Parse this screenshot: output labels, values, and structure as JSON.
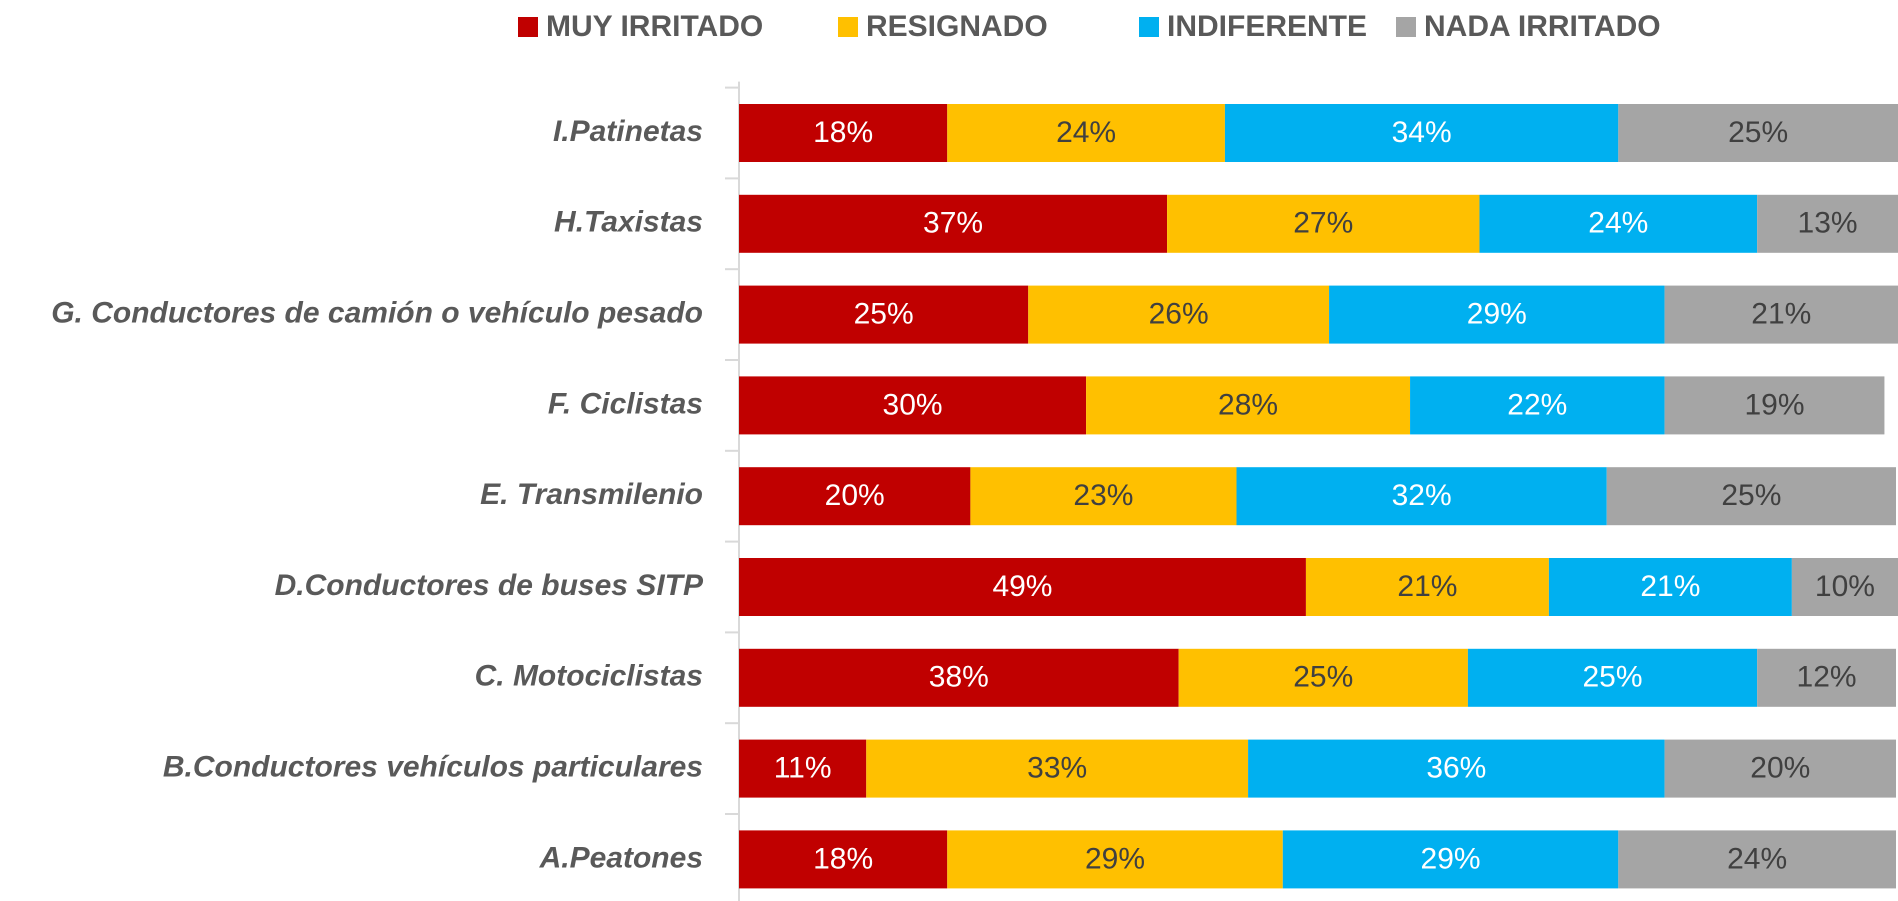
{
  "chart_data": {
    "type": "stacked-barh",
    "categories": [
      "I.Patinetas",
      "H.Taxistas",
      "G. Conductores de camión o vehículo pesado",
      "F. Ciclistas",
      "E. Transmilenio",
      "D.Conductores de buses SITP",
      "C. Motociclistas",
      "B.Conductores vehículos particulares",
      "A.Peatones"
    ],
    "series": [
      {
        "name": "MUY IRRITADO",
        "color": "#c00000",
        "values": [
          18,
          37,
          25,
          30,
          20,
          49,
          38,
          11,
          18
        ],
        "value_labels": [
          "18%",
          "37%",
          "25%",
          "30%",
          "20%",
          "49%",
          "38%",
          "11%",
          "18%"
        ]
      },
      {
        "name": "RESIGNADO",
        "color": "#ffc000",
        "values": [
          24,
          27,
          26,
          28,
          23,
          21,
          25,
          33,
          29
        ],
        "value_labels": [
          "24%",
          "27%",
          "26%",
          "28%",
          "23%",
          "21%",
          "25%",
          "33%",
          "29%"
        ]
      },
      {
        "name": "INDIFERENTE",
        "color": "#00b0f0",
        "values": [
          34,
          24,
          29,
          22,
          32,
          21,
          25,
          36,
          29
        ],
        "value_labels": [
          "34%",
          "24%",
          "29%",
          "22%",
          "32%",
          "21%",
          "25%",
          "36%",
          "29%"
        ]
      },
      {
        "name": "NADA IRRITADO",
        "color": "#a5a5a5",
        "values": [
          25,
          13,
          21,
          19,
          25,
          10,
          12,
          20,
          24
        ],
        "value_labels": [
          "25%",
          "13%",
          "21%",
          "19%",
          "25%",
          "10%",
          "12%",
          "20%",
          "24%"
        ]
      }
    ],
    "xlim": [
      0,
      100
    ],
    "legend": "top"
  }
}
